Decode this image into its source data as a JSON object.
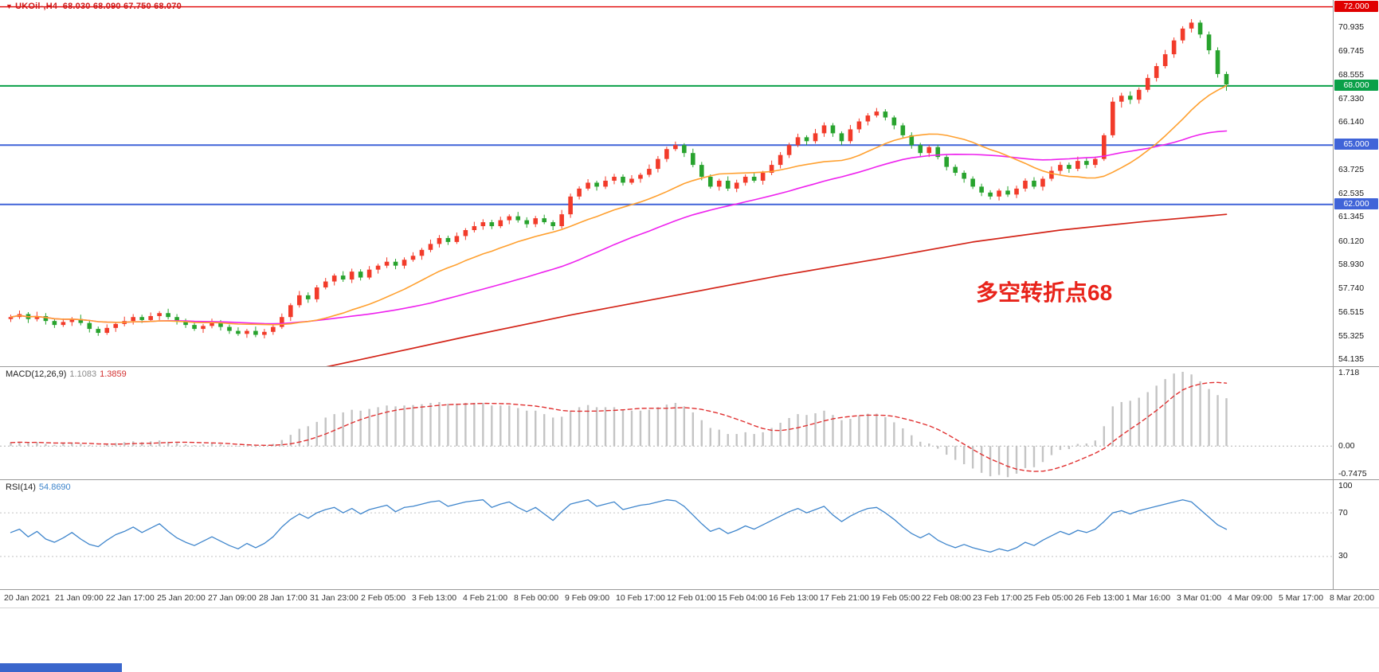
{
  "header": {
    "symbol": "UKOil-,H4",
    "ohlc": "68.030 68.090 67.750 68.070",
    "dropdown_icon": "▼"
  },
  "annotation": {
    "text": "多空转折点68"
  },
  "colors": {
    "candle_up": "#f23b2a",
    "candle_down": "#28a32e",
    "ma_orange": "#ffa02f",
    "ma_magenta": "#ee22ee",
    "ma_red": "#d32418",
    "macd_hist": "#c4c4c4",
    "macd_signal": "#e03030",
    "rsi_line": "#3e85cc",
    "axis_text": "#1a1a1a"
  },
  "levels": [
    {
      "label": "72.000",
      "price": 72.0,
      "color": "#e00000",
      "width": 1.3
    },
    {
      "label": "68.000",
      "price": 68.0,
      "color": "#0aa048",
      "width": 2
    },
    {
      "label": "65.000",
      "price": 65.0,
      "color": "#4064d8",
      "width": 2
    },
    {
      "label": "62.000",
      "price": 62.0,
      "color": "#4064d8",
      "width": 2
    }
  ],
  "price_axis": {
    "ticks": [
      "70.935",
      "69.745",
      "68.555",
      "67.330",
      "66.140",
      "63.725",
      "62.535",
      "61.345",
      "60.120",
      "58.930",
      "57.740",
      "56.515",
      "55.325",
      "54.135"
    ]
  },
  "time_axis": {
    "labels": [
      "20 Jan 2021",
      "21 Jan 09:00",
      "22 Jan 17:00",
      "25 Jan 20:00",
      "27 Jan 09:00",
      "28 Jan 17:00",
      "31 Jan 23:00",
      "2 Feb 05:00",
      "3 Feb 13:00",
      "4 Feb 21:00",
      "8 Feb 00:00",
      "9 Feb 09:00",
      "10 Feb 17:00",
      "12 Feb 01:00",
      "15 Feb 04:00",
      "16 Feb 13:00",
      "17 Feb 21:00",
      "19 Feb 05:00",
      "22 Feb 08:00",
      "23 Feb 17:00",
      "25 Feb 05:00",
      "26 Feb 13:00",
      "1 Mar 16:00",
      "3 Mar 01:00",
      "4 Mar 09:00",
      "5 Mar 17:00",
      "8 Mar 20:00"
    ]
  },
  "chart_data": {
    "type": "candlestick",
    "title": "UKOil- H4",
    "main": {
      "ylim": [
        53.81,
        72.345
      ],
      "ma_orange_period": 18,
      "ma_magenta_period": 40,
      "ma_red_anchors": [
        [
          30,
          53.2
        ],
        [
          40,
          54.15
        ],
        [
          52,
          55.3
        ],
        [
          64,
          56.4
        ],
        [
          76,
          57.4
        ],
        [
          88,
          58.4
        ],
        [
          100,
          59.3
        ],
        [
          110,
          60.1
        ],
        [
          120,
          60.7
        ],
        [
          130,
          61.15
        ],
        [
          139,
          61.5
        ]
      ],
      "candles": [
        [
          56.2,
          56.42,
          56.05,
          56.3
        ],
        [
          56.3,
          56.63,
          56.2,
          56.45
        ],
        [
          56.45,
          56.55,
          56.0,
          56.2
        ],
        [
          56.2,
          56.57,
          56.08,
          56.35
        ],
        [
          56.35,
          56.5,
          55.92,
          56.1
        ],
        [
          56.1,
          56.22,
          55.75,
          55.9
        ],
        [
          55.9,
          56.23,
          55.8,
          56.05
        ],
        [
          56.05,
          56.3,
          55.85,
          56.2
        ],
        [
          56.2,
          56.42,
          55.88,
          56.0
        ],
        [
          56.0,
          56.15,
          55.52,
          55.7
        ],
        [
          55.7,
          55.82,
          55.35,
          55.5
        ],
        [
          55.5,
          55.93,
          55.4,
          55.75
        ],
        [
          55.75,
          56.05,
          55.55,
          55.95
        ],
        [
          55.95,
          56.32,
          55.83,
          56.1
        ],
        [
          56.1,
          56.45,
          55.92,
          56.3
        ],
        [
          56.3,
          56.42,
          56.0,
          56.15
        ],
        [
          56.15,
          56.53,
          56.05,
          56.35
        ],
        [
          56.35,
          56.6,
          56.15,
          56.5
        ],
        [
          56.5,
          56.72,
          56.18,
          56.3
        ],
        [
          56.3,
          56.45,
          55.92,
          56.1
        ],
        [
          56.1,
          56.22,
          55.75,
          55.9
        ],
        [
          55.9,
          56.08,
          55.6,
          55.7
        ],
        [
          55.7,
          55.95,
          55.5,
          55.85
        ],
        [
          55.85,
          56.22,
          55.73,
          56.0
        ],
        [
          56.0,
          56.15,
          55.62,
          55.8
        ],
        [
          55.8,
          55.92,
          55.45,
          55.6
        ],
        [
          55.6,
          55.78,
          55.35,
          55.45
        ],
        [
          55.45,
          55.7,
          55.25,
          55.6
        ],
        [
          55.6,
          55.82,
          55.28,
          55.4
        ],
        [
          55.4,
          55.7,
          55.22,
          55.55
        ],
        [
          55.55,
          55.92,
          55.4,
          55.8
        ],
        [
          55.8,
          56.48,
          55.7,
          56.3
        ],
        [
          56.3,
          57.0,
          56.1,
          56.9
        ],
        [
          56.9,
          57.62,
          56.78,
          57.4
        ],
        [
          57.4,
          57.55,
          57.02,
          57.2
        ],
        [
          57.2,
          57.92,
          57.05,
          57.8
        ],
        [
          57.8,
          58.28,
          57.7,
          58.1
        ],
        [
          58.1,
          58.5,
          57.9,
          58.4
        ],
        [
          58.4,
          58.62,
          58.08,
          58.2
        ],
        [
          58.2,
          58.75,
          58.02,
          58.6
        ],
        [
          58.6,
          58.72,
          58.15,
          58.3
        ],
        [
          58.3,
          58.88,
          58.2,
          58.7
        ],
        [
          58.7,
          59.0,
          58.5,
          58.9
        ],
        [
          58.9,
          59.32,
          58.78,
          59.1
        ],
        [
          59.1,
          59.25,
          58.72,
          58.9
        ],
        [
          58.9,
          59.32,
          58.75,
          59.2
        ],
        [
          59.2,
          59.58,
          59.1,
          59.4
        ],
        [
          59.4,
          59.8,
          59.2,
          59.7
        ],
        [
          59.7,
          60.22,
          59.58,
          60.0
        ],
        [
          60.0,
          60.45,
          59.82,
          60.3
        ],
        [
          60.3,
          60.42,
          59.95,
          60.1
        ],
        [
          60.1,
          60.58,
          60.0,
          60.4
        ],
        [
          60.4,
          60.8,
          60.2,
          60.7
        ],
        [
          60.7,
          61.12,
          60.58,
          60.9
        ],
        [
          60.9,
          61.25,
          60.72,
          61.1
        ],
        [
          61.1,
          61.22,
          60.75,
          60.9
        ],
        [
          60.9,
          61.38,
          60.8,
          61.2
        ],
        [
          61.2,
          61.5,
          61.0,
          61.4
        ],
        [
          61.4,
          61.62,
          61.08,
          61.2
        ],
        [
          61.2,
          61.35,
          60.82,
          61.0
        ],
        [
          61.0,
          61.42,
          60.85,
          61.3
        ],
        [
          61.3,
          61.48,
          61.0,
          61.1
        ],
        [
          61.1,
          61.2,
          60.7,
          60.9
        ],
        [
          60.9,
          61.72,
          60.78,
          61.5
        ],
        [
          61.5,
          62.55,
          61.32,
          62.4
        ],
        [
          62.4,
          62.92,
          62.25,
          62.8
        ],
        [
          62.8,
          63.28,
          62.7,
          63.1
        ],
        [
          63.1,
          63.2,
          62.7,
          62.9
        ],
        [
          62.9,
          63.42,
          62.78,
          63.2
        ],
        [
          63.2,
          63.55,
          63.02,
          63.4
        ],
        [
          63.4,
          63.52,
          62.95,
          63.1
        ],
        [
          63.1,
          63.48,
          63.0,
          63.3
        ],
        [
          63.3,
          63.6,
          63.1,
          63.5
        ],
        [
          63.5,
          64.02,
          63.38,
          63.8
        ],
        [
          63.8,
          64.45,
          63.62,
          64.3
        ],
        [
          64.3,
          64.92,
          64.15,
          64.8
        ],
        [
          64.8,
          65.18,
          64.7,
          65.0
        ],
        [
          65.0,
          65.1,
          64.4,
          64.6
        ],
        [
          64.6,
          64.82,
          63.88,
          64.0
        ],
        [
          64.0,
          64.15,
          63.22,
          63.4
        ],
        [
          63.4,
          63.52,
          62.8,
          62.9
        ],
        [
          62.9,
          63.3,
          62.7,
          63.2
        ],
        [
          63.2,
          63.42,
          62.68,
          62.8
        ],
        [
          62.8,
          63.25,
          62.62,
          63.1
        ],
        [
          63.1,
          63.52,
          62.95,
          63.4
        ],
        [
          63.4,
          63.58,
          63.1,
          63.2
        ],
        [
          63.2,
          63.7,
          63.0,
          63.6
        ],
        [
          63.6,
          64.22,
          63.48,
          64.0
        ],
        [
          64.0,
          64.65,
          63.82,
          64.5
        ],
        [
          64.5,
          65.12,
          64.35,
          65.0
        ],
        [
          65.0,
          65.58,
          64.9,
          65.4
        ],
        [
          65.4,
          65.5,
          65.0,
          65.2
        ],
        [
          65.2,
          65.82,
          65.08,
          65.6
        ],
        [
          65.6,
          66.15,
          65.42,
          66.0
        ],
        [
          66.0,
          66.12,
          65.42,
          65.6
        ],
        [
          65.6,
          65.7,
          65.0,
          65.2
        ],
        [
          65.2,
          66.02,
          65.08,
          65.8
        ],
        [
          65.8,
          66.35,
          65.62,
          66.2
        ],
        [
          66.2,
          66.62,
          66.0,
          66.5
        ],
        [
          66.5,
          66.88,
          66.4,
          66.7
        ],
        [
          66.7,
          66.82,
          66.25,
          66.4
        ],
        [
          66.4,
          66.5,
          65.8,
          66.0
        ],
        [
          66.0,
          66.12,
          65.38,
          65.5
        ],
        [
          65.5,
          65.65,
          64.82,
          65.0
        ],
        [
          65.0,
          65.12,
          64.45,
          64.6
        ],
        [
          64.6,
          65.0,
          64.4,
          64.9
        ],
        [
          64.9,
          65.02,
          64.28,
          64.4
        ],
        [
          64.4,
          64.55,
          63.72,
          63.9
        ],
        [
          63.9,
          64.02,
          63.45,
          63.6
        ],
        [
          63.6,
          63.72,
          63.1,
          63.3
        ],
        [
          63.3,
          63.42,
          62.78,
          62.9
        ],
        [
          62.9,
          63.05,
          62.42,
          62.6
        ],
        [
          62.6,
          62.72,
          62.25,
          62.4
        ],
        [
          62.4,
          62.8,
          62.2,
          62.7
        ],
        [
          62.7,
          62.92,
          62.38,
          62.5
        ],
        [
          62.5,
          62.95,
          62.32,
          62.8
        ],
        [
          62.8,
          63.32,
          62.65,
          63.2
        ],
        [
          63.2,
          63.38,
          62.78,
          62.9
        ],
        [
          62.9,
          63.42,
          62.7,
          63.3
        ],
        [
          63.3,
          63.92,
          63.18,
          63.7
        ],
        [
          63.7,
          64.15,
          63.52,
          64.0
        ],
        [
          64.0,
          64.12,
          63.6,
          63.8
        ],
        [
          63.8,
          64.42,
          63.68,
          64.2
        ],
        [
          64.2,
          64.35,
          63.82,
          64.0
        ],
        [
          64.0,
          64.42,
          63.85,
          64.3
        ],
        [
          64.3,
          65.6,
          64.2,
          65.5
        ],
        [
          65.5,
          67.42,
          65.38,
          67.2
        ],
        [
          67.2,
          67.65,
          66.9,
          67.5
        ],
        [
          67.5,
          67.72,
          67.08,
          67.3
        ],
        [
          67.3,
          67.92,
          67.1,
          67.8
        ],
        [
          67.8,
          68.58,
          67.68,
          68.4
        ],
        [
          68.4,
          69.15,
          68.22,
          69.0
        ],
        [
          69.0,
          69.82,
          68.88,
          69.6
        ],
        [
          69.6,
          70.45,
          69.42,
          70.3
        ],
        [
          70.3,
          71.02,
          70.15,
          70.9
        ],
        [
          70.9,
          71.38,
          70.7,
          71.2
        ],
        [
          71.2,
          71.32,
          70.42,
          70.6
        ],
        [
          70.6,
          70.75,
          69.6,
          69.8
        ],
        [
          69.8,
          69.95,
          68.42,
          68.6
        ],
        [
          68.6,
          68.72,
          67.75,
          68.07
        ]
      ]
    },
    "macd": {
      "label": "MACD(12,26,9)",
      "value_main": "1.1083",
      "value_signal": "1.3859",
      "ylim": [
        -0.77,
        1.83
      ],
      "ticks": [
        {
          "v": 1.718,
          "label": "1.718"
        },
        {
          "v": 0,
          "label": "0.00"
        },
        {
          "v": -0.7475,
          "label": "-0.7475"
        }
      ],
      "signal_period": 9,
      "histogram": [
        0.08,
        0.1,
        0.07,
        0.09,
        0.05,
        0.03,
        0.06,
        0.08,
        0.05,
        0.02,
        0.0,
        0.04,
        0.07,
        0.09,
        0.11,
        0.09,
        0.11,
        0.13,
        0.1,
        0.07,
        0.04,
        0.02,
        0.04,
        0.06,
        0.04,
        0.01,
        -0.01,
        0.01,
        -0.02,
        0.0,
        0.05,
        0.14,
        0.26,
        0.4,
        0.46,
        0.56,
        0.66,
        0.74,
        0.78,
        0.84,
        0.82,
        0.86,
        0.9,
        0.94,
        0.92,
        0.94,
        0.95,
        0.97,
        1.0,
        1.02,
        0.98,
        0.98,
        1.0,
        1.0,
        1.0,
        0.94,
        0.94,
        0.94,
        0.88,
        0.82,
        0.82,
        0.74,
        0.66,
        0.68,
        0.82,
        0.9,
        0.95,
        0.9,
        0.9,
        0.9,
        0.84,
        0.82,
        0.82,
        0.84,
        0.9,
        0.96,
        1.0,
        0.92,
        0.78,
        0.6,
        0.42,
        0.38,
        0.28,
        0.28,
        0.32,
        0.28,
        0.32,
        0.42,
        0.54,
        0.65,
        0.74,
        0.72,
        0.76,
        0.82,
        0.72,
        0.6,
        0.63,
        0.7,
        0.75,
        0.75,
        0.67,
        0.55,
        0.41,
        0.25,
        0.1,
        0.06,
        -0.06,
        -0.2,
        -0.32,
        -0.42,
        -0.52,
        -0.62,
        -0.7,
        -0.67,
        -0.72,
        -0.64,
        -0.51,
        -0.49,
        -0.37,
        -0.21,
        -0.09,
        -0.07,
        0.05,
        0.06,
        0.13,
        0.46,
        0.92,
        1.02,
        1.05,
        1.12,
        1.25,
        1.4,
        1.55,
        1.68,
        1.72,
        1.66,
        1.5,
        1.32,
        1.18,
        1.1083
      ]
    },
    "rsi": {
      "label": "RSI(14)",
      "value_text": "54.8690",
      "ylim": [
        0,
        100
      ],
      "ticks": [
        {
          "v": 100,
          "label": "100"
        },
        {
          "v": 70,
          "label": "70"
        },
        {
          "v": 30,
          "label": "30"
        }
      ],
      "levels": [
        70,
        30
      ],
      "values": [
        52,
        55,
        48,
        53,
        46,
        43,
        47,
        52,
        46,
        41,
        39,
        45,
        50,
        53,
        57,
        52,
        56,
        60,
        53,
        47,
        43,
        40,
        44,
        48,
        44,
        40,
        37,
        42,
        38,
        42,
        48,
        57,
        64,
        69,
        65,
        70,
        73,
        75,
        70,
        74,
        69,
        73,
        75,
        77,
        71,
        75,
        76,
        78,
        80,
        81,
        76,
        78,
        80,
        81,
        82,
        75,
        78,
        80,
        75,
        71,
        75,
        69,
        63,
        71,
        78,
        80,
        82,
        76,
        78,
        80,
        73,
        75,
        77,
        78,
        80,
        82,
        81,
        76,
        68,
        60,
        53,
        56,
        51,
        54,
        58,
        55,
        59,
        63,
        67,
        71,
        74,
        70,
        73,
        76,
        68,
        62,
        67,
        71,
        74,
        75,
        70,
        64,
        57,
        51,
        47,
        51,
        45,
        41,
        38,
        41,
        38,
        36,
        34,
        37,
        35,
        38,
        43,
        40,
        45,
        49,
        53,
        50,
        54,
        52,
        55,
        62,
        70,
        72,
        69,
        72,
        74,
        76,
        78,
        80,
        82,
        80,
        73,
        66,
        59,
        54.87
      ]
    }
  }
}
